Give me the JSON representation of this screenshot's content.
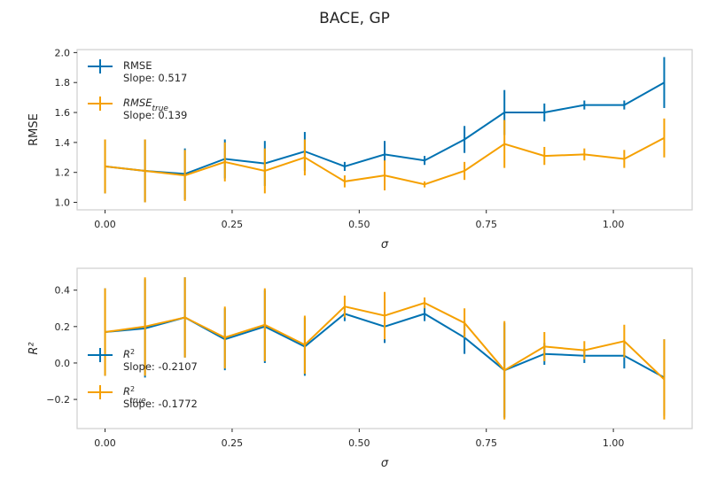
{
  "figure_title": "BACE, GP",
  "colors": {
    "blue": "#0072B2",
    "orange": "#F5A000"
  },
  "chart_data": [
    {
      "type": "line",
      "x": [
        0.0,
        0.0786,
        0.1571,
        0.2357,
        0.3143,
        0.3929,
        0.4714,
        0.55,
        0.6286,
        0.7071,
        0.7857,
        0.8643,
        0.9429,
        1.0214,
        1.1
      ],
      "xlabel": "σ",
      "ylabel": "RMSE",
      "xlim": [
        -0.055,
        1.155
      ],
      "ylim": [
        0.95,
        2.02
      ],
      "xticks": [
        0.0,
        0.25,
        0.5,
        0.75,
        1.0
      ],
      "xtick_labels": [
        "0.00",
        "0.25",
        "0.50",
        "0.75",
        "1.00"
      ],
      "yticks": [
        1.0,
        1.2,
        1.4,
        1.6,
        1.8,
        2.0
      ],
      "ytick_labels": [
        "1.0",
        "1.2",
        "1.4",
        "1.6",
        "1.8",
        "2.0"
      ],
      "legend_position": "top-left",
      "series": [
        {
          "name": "RMSE",
          "name_sub": "",
          "slope_text": "Slope: 0.517",
          "color": "#0072B2",
          "values": [
            1.24,
            1.21,
            1.19,
            1.29,
            1.26,
            1.34,
            1.24,
            1.32,
            1.28,
            1.42,
            1.6,
            1.6,
            1.65,
            1.65,
            1.8
          ],
          "err": [
            0.18,
            0.21,
            0.17,
            0.13,
            0.15,
            0.13,
            0.03,
            0.09,
            0.03,
            0.09,
            0.15,
            0.06,
            0.03,
            0.03,
            0.17
          ]
        },
        {
          "name": "RMSE",
          "name_sub": "true",
          "slope_text": "Slope: 0.139",
          "color": "#F5A000",
          "values": [
            1.24,
            1.21,
            1.18,
            1.27,
            1.21,
            1.3,
            1.14,
            1.18,
            1.12,
            1.21,
            1.39,
            1.31,
            1.32,
            1.29,
            1.43
          ],
          "err": [
            0.18,
            0.21,
            0.17,
            0.13,
            0.15,
            0.12,
            0.04,
            0.1,
            0.02,
            0.06,
            0.16,
            0.06,
            0.04,
            0.06,
            0.13
          ]
        }
      ]
    },
    {
      "type": "line",
      "x": [
        0.0,
        0.0786,
        0.1571,
        0.2357,
        0.3143,
        0.3929,
        0.4714,
        0.55,
        0.6286,
        0.7071,
        0.7857,
        0.8643,
        0.9429,
        1.0214,
        1.1
      ],
      "xlabel": "σ",
      "ylabel": "R²",
      "xlim": [
        -0.055,
        1.155
      ],
      "ylim": [
        -0.36,
        0.52
      ],
      "xticks": [
        0.0,
        0.25,
        0.5,
        0.75,
        1.0
      ],
      "xtick_labels": [
        "0.00",
        "0.25",
        "0.50",
        "0.75",
        "1.00"
      ],
      "yticks": [
        -0.2,
        0.0,
        0.2,
        0.4
      ],
      "ytick_labels": [
        "−0.2",
        "0.0",
        "0.2",
        "0.4"
      ],
      "legend_position": "bottom-left",
      "series": [
        {
          "name": "R",
          "name_sup": "2",
          "name_sub": "",
          "slope_text": "Slope: -0.2107",
          "color": "#0072B2",
          "values": [
            0.17,
            0.19,
            0.25,
            0.13,
            0.2,
            0.09,
            0.27,
            0.2,
            0.27,
            0.14,
            -0.04,
            0.05,
            0.04,
            0.04,
            -0.08
          ],
          "err": [
            0.24,
            0.27,
            0.22,
            0.17,
            0.2,
            0.16,
            0.04,
            0.09,
            0.04,
            0.09,
            0.26,
            0.06,
            0.04,
            0.07,
            0.21
          ]
        },
        {
          "name": "R",
          "name_sup": "2",
          "name_sub": "true",
          "slope_text": "Slope: -0.1772",
          "color": "#F5A000",
          "values": [
            0.17,
            0.2,
            0.25,
            0.14,
            0.21,
            0.1,
            0.31,
            0.26,
            0.33,
            0.22,
            -0.04,
            0.09,
            0.07,
            0.12,
            -0.09
          ],
          "err": [
            0.24,
            0.27,
            0.22,
            0.17,
            0.2,
            0.16,
            0.06,
            0.13,
            0.03,
            0.08,
            0.27,
            0.08,
            0.05,
            0.09,
            0.22
          ]
        }
      ]
    }
  ]
}
